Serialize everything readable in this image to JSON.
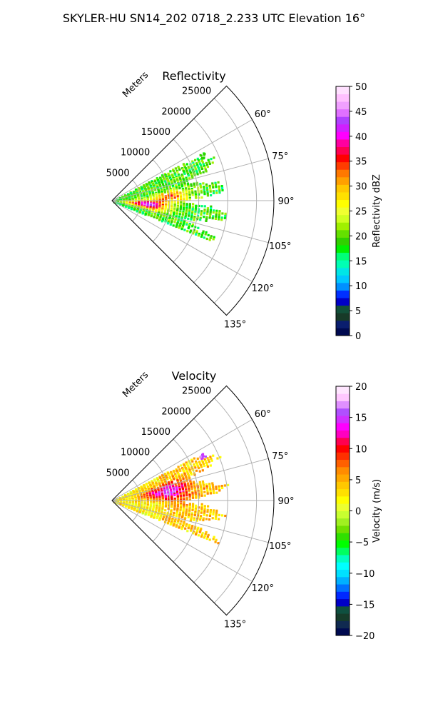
{
  "figure_title": "SKYLER-HU  SN14_202  0718_2.233 UTC Elevation 16°",
  "chart_data": [
    {
      "type": "heatmap",
      "subtype": "polar-sector (radar PPI)",
      "title": "Reflectivity",
      "radial_label": "Meters",
      "radial_ticks": [
        5000,
        10000,
        15000,
        20000,
        25000
      ],
      "radial_tick_labels": [
        "5000",
        "10000",
        "15000",
        "20000",
        "25000"
      ],
      "rlim": [
        0,
        28000
      ],
      "angle_ticks_deg": [
        60,
        75,
        90,
        105,
        120,
        135
      ],
      "angle_tick_labels": [
        "60°",
        "75°",
        "90°",
        "105°",
        "120°",
        "135°"
      ],
      "thetalim_deg": [
        45,
        135
      ],
      "grid": true,
      "colorbar": {
        "label": "Reflectivity dBZ",
        "range": [
          0,
          50
        ],
        "ticks": [
          0,
          5,
          10,
          15,
          20,
          25,
          30,
          35,
          40,
          45,
          50
        ],
        "tick_labels": [
          "0",
          "5",
          "10",
          "15",
          "20",
          "25",
          "30",
          "35",
          "40",
          "45",
          "50"
        ]
      },
      "echo_region": {
        "r_range_m": [
          0,
          20000
        ],
        "azimuth_range_deg": [
          62,
          112
        ]
      }
    },
    {
      "type": "heatmap",
      "subtype": "polar-sector (radar PPI)",
      "title": "Velocity",
      "radial_label": "Meters",
      "radial_ticks": [
        5000,
        10000,
        15000,
        20000,
        25000
      ],
      "radial_tick_labels": [
        "5000",
        "10000",
        "15000",
        "20000",
        "25000"
      ],
      "rlim": [
        0,
        28000
      ],
      "angle_ticks_deg": [
        60,
        75,
        90,
        105,
        120,
        135
      ],
      "angle_tick_labels": [
        "60°",
        "75°",
        "90°",
        "105°",
        "120°",
        "135°"
      ],
      "thetalim_deg": [
        45,
        135
      ],
      "grid": true,
      "colorbar": {
        "label": "Velocity (m/s)",
        "range": [
          -20,
          20
        ],
        "ticks": [
          -20,
          -15,
          -10,
          -5,
          0,
          5,
          10,
          15,
          20
        ],
        "tick_labels": [
          "−20",
          "−15",
          "−10",
          "−5",
          "0",
          "5",
          "10",
          "15",
          "20"
        ]
      },
      "echo_region": {
        "r_range_m": [
          0,
          20000
        ],
        "azimuth_range_deg": [
          62,
          112
        ]
      }
    }
  ],
  "colors": {
    "grid": "#b0b0b0",
    "frame": "#000000",
    "reflectivity_cmap": [
      "#000a50",
      "#0a1e6e",
      "#173a28",
      "#12503a",
      "#0000c8",
      "#0030ff",
      "#0090ff",
      "#00c8ff",
      "#00e6e6",
      "#00ffb4",
      "#00ff78",
      "#00f000",
      "#30d000",
      "#64e000",
      "#a0f000",
      "#d0ff20",
      "#f0ff30",
      "#ffff00",
      "#ffe000",
      "#ffc800",
      "#ffa000",
      "#ff7800",
      "#ff3c00",
      "#ff0000",
      "#ff0050",
      "#ff00a0",
      "#ff00ff",
      "#d020ff",
      "#b040ff",
      "#e070ff",
      "#f0a0ff",
      "#ffc0ff",
      "#ffe0ff"
    ],
    "velocity_cmap": [
      "#000a50",
      "#102a50",
      "#163c2a",
      "#0f5040",
      "#0000c8",
      "#0028ff",
      "#0070ff",
      "#00b0ff",
      "#00e0ff",
      "#00ffff",
      "#00ffc0",
      "#00ff60",
      "#00ff00",
      "#30e000",
      "#70e000",
      "#a0f020",
      "#c8ff30",
      "#ecff30",
      "#ffff00",
      "#ffe000",
      "#ffc800",
      "#ffa800",
      "#ff8c00",
      "#ff6000",
      "#ff3000",
      "#ff0000",
      "#ff0050",
      "#ff00c0",
      "#ff00ff",
      "#d030ff",
      "#b050ff",
      "#e090ff",
      "#ffc8ff",
      "#ffe6ff"
    ]
  }
}
